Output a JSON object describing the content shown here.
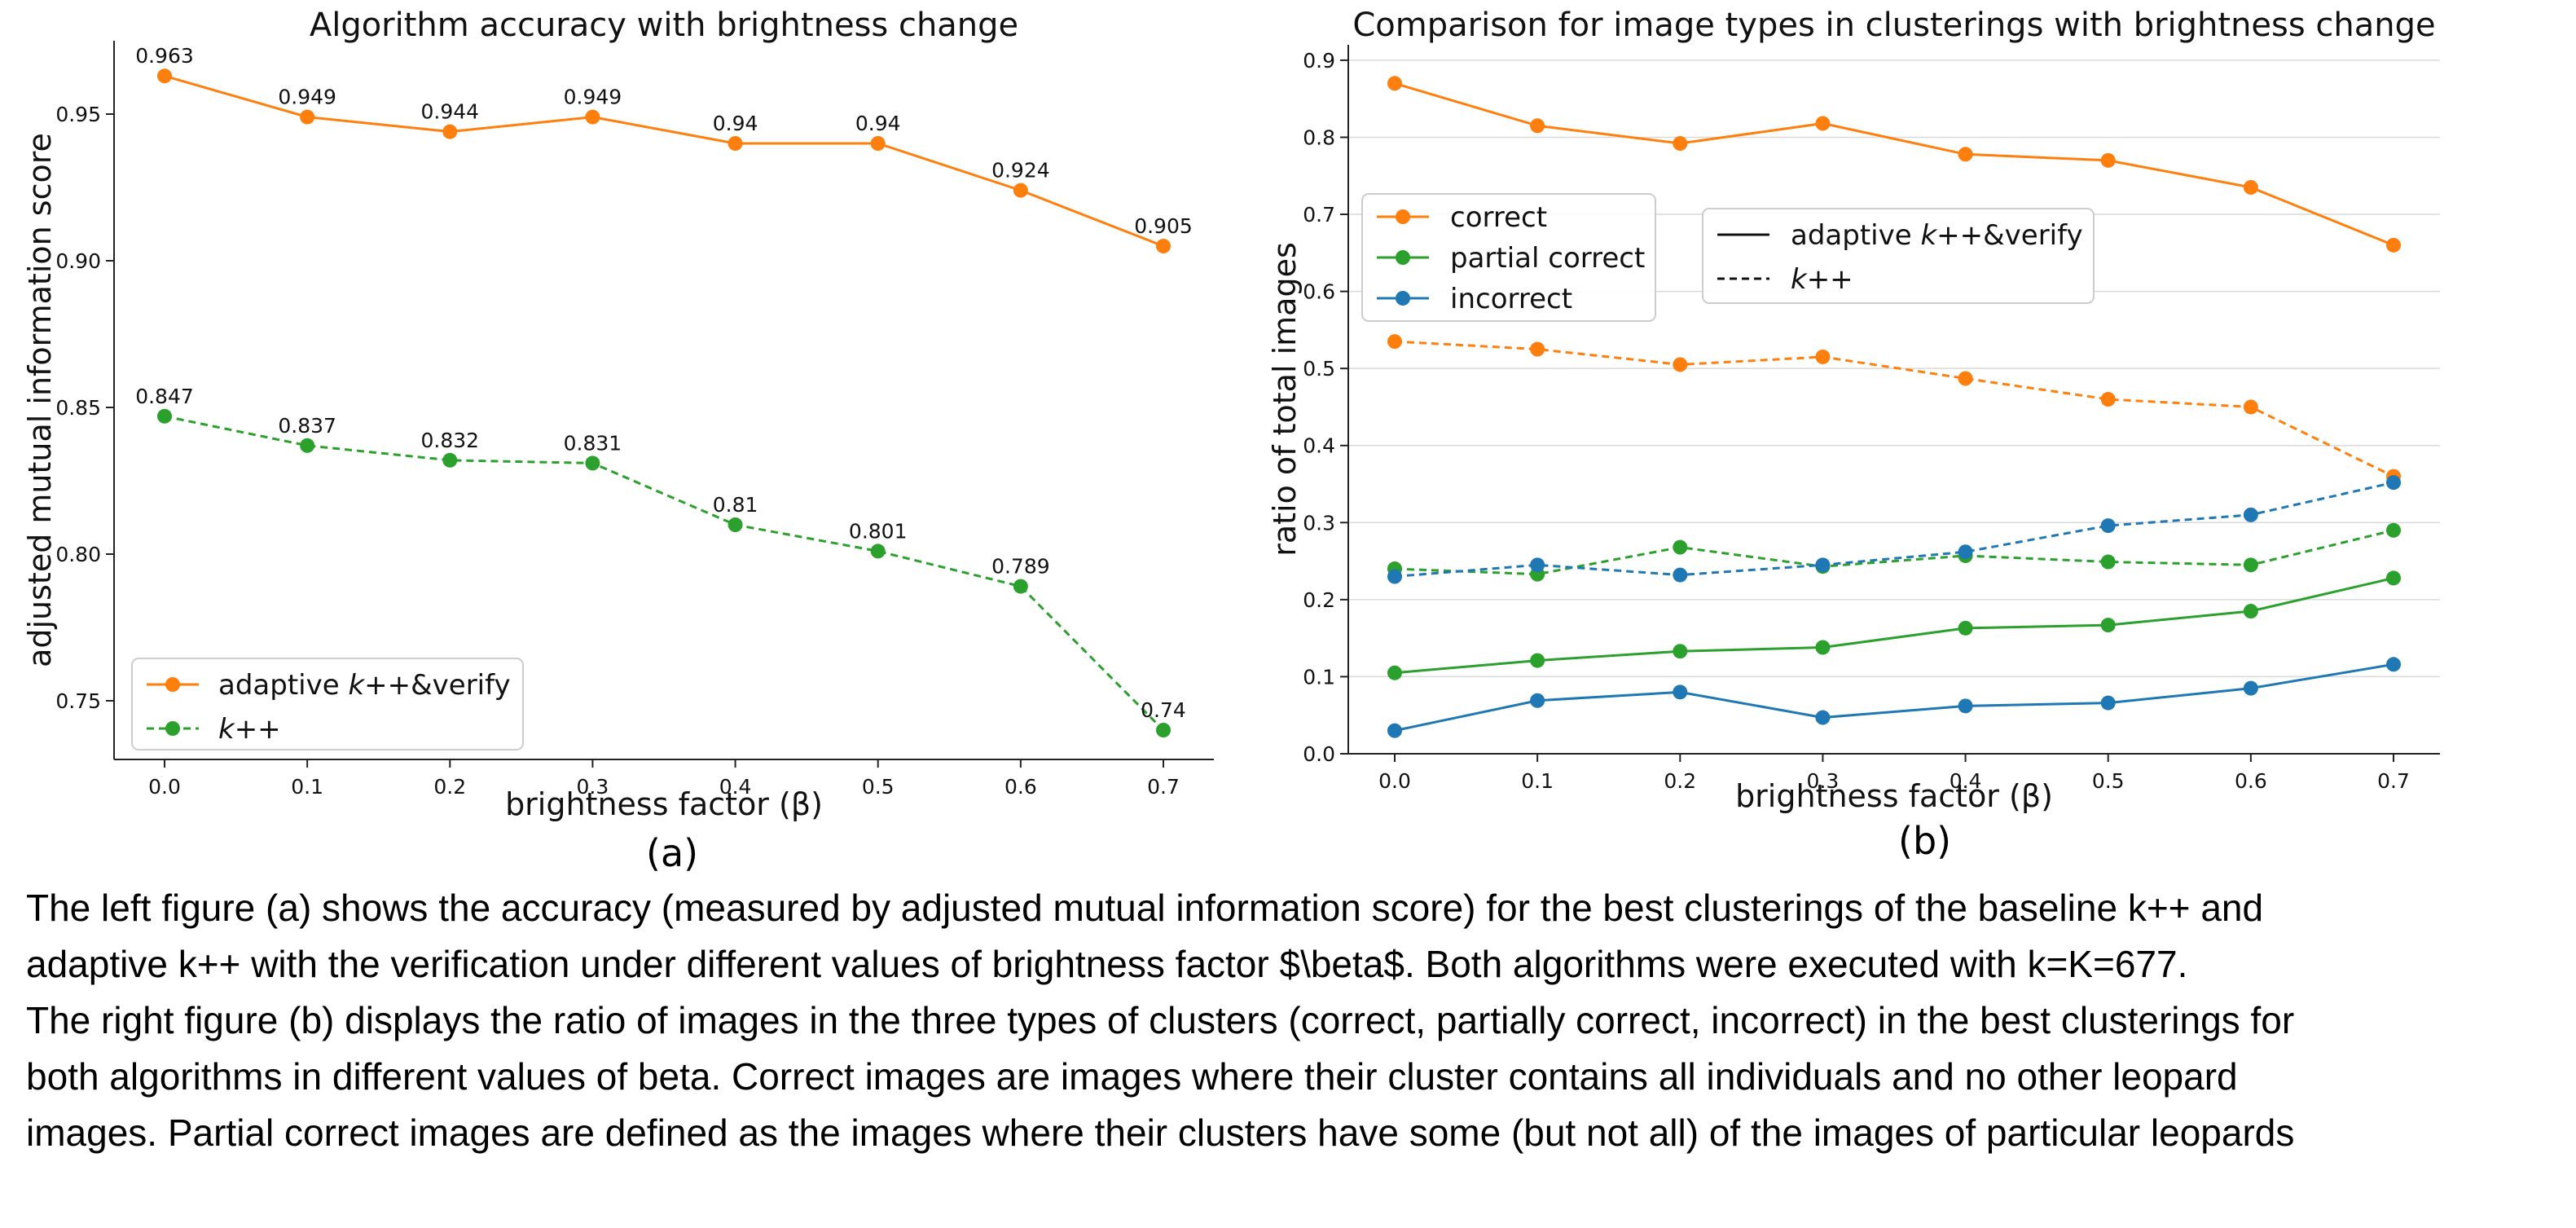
{
  "colors": {
    "orange": "#ff7f0e",
    "green": "#2ca02c",
    "blue": "#1f77b4",
    "grid": "#d9d9d9"
  },
  "chart_data": [
    {
      "type": "line",
      "title": "Algorithm accuracy with brightness change",
      "xlabel": "brightness factor (β)",
      "ylabel": "adjusted mutual information score",
      "x": [
        0.0,
        0.1,
        0.2,
        0.3,
        0.4,
        0.5,
        0.6,
        0.7
      ],
      "xticks": [
        "0.0",
        "0.1",
        "0.2",
        "0.3",
        "0.4",
        "0.5",
        "0.6",
        "0.7"
      ],
      "yticks": [
        "0.75",
        "0.80",
        "0.85",
        "0.90",
        "0.95"
      ],
      "ylim": [
        0.73,
        0.975
      ],
      "grid": false,
      "legend_position": "lower-left",
      "series": [
        {
          "name": "adaptive k++&verify",
          "style": "solid",
          "color": "#ff7f0e",
          "values": [
            0.963,
            0.949,
            0.944,
            0.949,
            0.94,
            0.94,
            0.924,
            0.905
          ],
          "labels": [
            "0.963",
            "0.949",
            "0.944",
            "0.949",
            "0.94",
            "0.94",
            "0.924",
            "0.905"
          ]
        },
        {
          "name": "k++",
          "style": "dashed",
          "color": "#2ca02c",
          "values": [
            0.847,
            0.837,
            0.832,
            0.831,
            0.81,
            0.801,
            0.789,
            0.74
          ],
          "labels": [
            "0.847",
            "0.837",
            "0.832",
            "0.831",
            "0.81",
            "0.801",
            "0.789",
            "0.74"
          ]
        }
      ]
    },
    {
      "type": "line",
      "title": "Comparison for image types in clusterings with brightness change",
      "xlabel": "brightness factor (β)",
      "ylabel": "ratio of total images",
      "x": [
        0.0,
        0.1,
        0.2,
        0.3,
        0.4,
        0.5,
        0.6,
        0.7
      ],
      "xticks": [
        "0.0",
        "0.1",
        "0.2",
        "0.3",
        "0.4",
        "0.5",
        "0.6",
        "0.7"
      ],
      "yticks": [
        "0.0",
        "0.1",
        "0.2",
        "0.3",
        "0.4",
        "0.5",
        "0.6",
        "0.7",
        "0.8",
        "0.9"
      ],
      "ylim": [
        0.0,
        0.92
      ],
      "grid": true,
      "legend_position": "upper-left",
      "color_legend": [
        "correct",
        "partial correct",
        "incorrect"
      ],
      "style_legend": [
        "adaptive k++&verify",
        "k++"
      ],
      "series": [
        {
          "name": "correct",
          "algorithm": "adaptive k++&verify",
          "style": "solid",
          "color": "#ff7f0e",
          "values": [
            0.87,
            0.815,
            0.792,
            0.818,
            0.778,
            0.77,
            0.735,
            0.66
          ]
        },
        {
          "name": "correct",
          "algorithm": "k++",
          "style": "dashed",
          "color": "#ff7f0e",
          "values": [
            0.535,
            0.525,
            0.505,
            0.515,
            0.487,
            0.46,
            0.45,
            0.36
          ]
        },
        {
          "name": "partial correct",
          "algorithm": "adaptive k++&verify",
          "style": "solid",
          "color": "#2ca02c",
          "values": [
            0.105,
            0.121,
            0.133,
            0.138,
            0.163,
            0.167,
            0.185,
            0.228
          ]
        },
        {
          "name": "partial correct",
          "algorithm": "k++",
          "style": "dashed",
          "color": "#2ca02c",
          "values": [
            0.24,
            0.233,
            0.268,
            0.243,
            0.257,
            0.249,
            0.245,
            0.29
          ]
        },
        {
          "name": "incorrect",
          "algorithm": "adaptive k++&verify",
          "style": "solid",
          "color": "#1f77b4",
          "values": [
            0.03,
            0.069,
            0.08,
            0.047,
            0.062,
            0.066,
            0.085,
            0.116
          ]
        },
        {
          "name": "incorrect",
          "algorithm": "k++",
          "style": "dashed",
          "color": "#1f77b4",
          "values": [
            0.23,
            0.245,
            0.232,
            0.245,
            0.262,
            0.296,
            0.31,
            0.352
          ]
        }
      ]
    }
  ],
  "figure": {
    "left_caption": "(a)",
    "right_caption": "(b)"
  },
  "caption": {
    "line1": "The left figure (a) shows the accuracy (measured by adjusted mutual information score) for the best clusterings of the baseline k++ and",
    "line2": "adaptive k++ with the verification under different values of brightness factor $\\beta$. Both algorithms were executed with k=K=677.",
    "line3": "The right figure (b) displays the ratio of images in the three types of clusters (correct, partially correct, incorrect) in the best clusterings for",
    "line4": "both algorithms in different values of beta.  Correct images are images where their cluster contains all individuals and no other leopard",
    "line5": "images.  Partial correct images are defined as the images where their clusters have some (but not all) of the images of particular leopards"
  }
}
